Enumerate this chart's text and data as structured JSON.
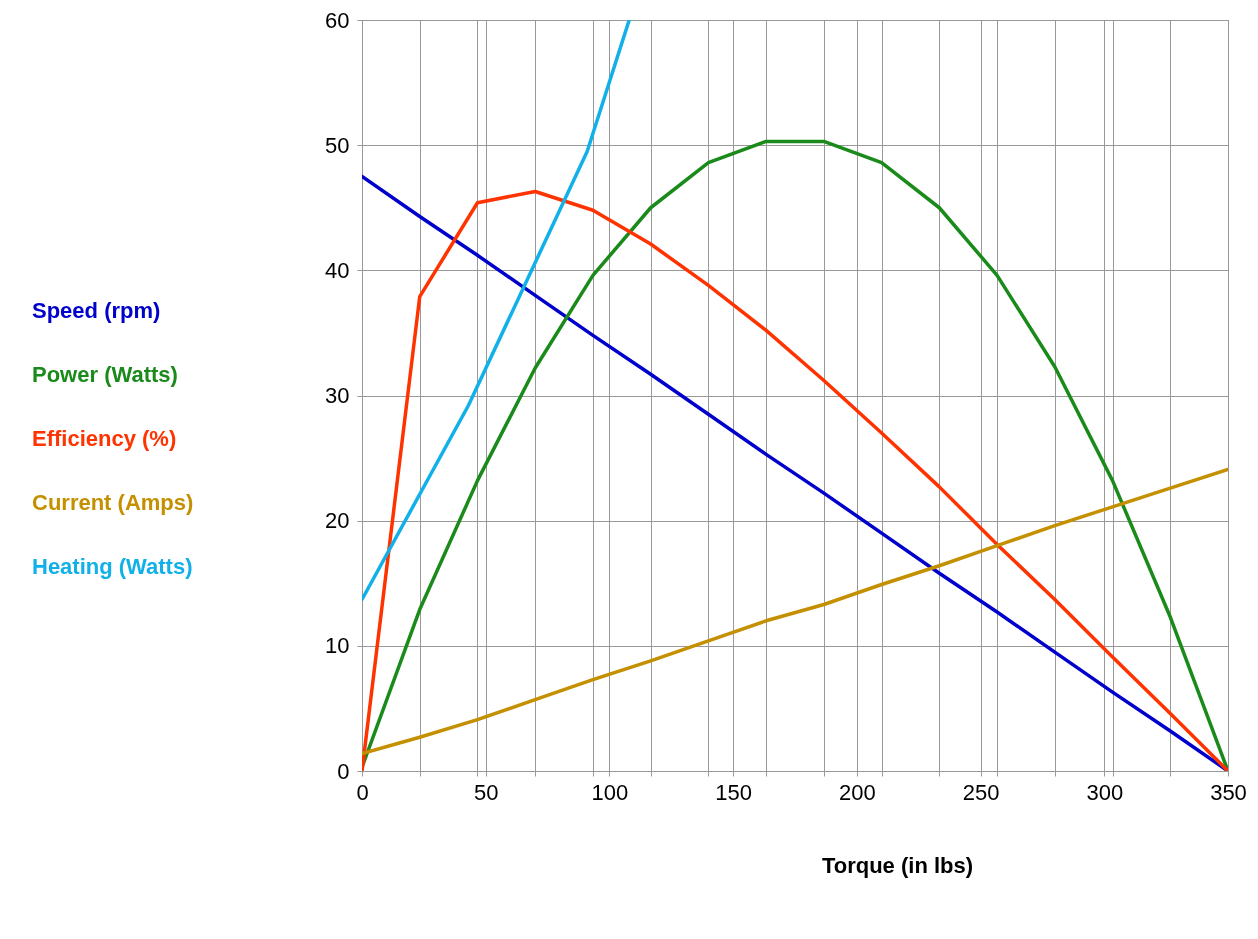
{
  "chart_data": {
    "type": "line",
    "xlabel": "Torque (in lbs)",
    "x": [
      0,
      23.33,
      46.67,
      70,
      93.33,
      116.67,
      140,
      163.33,
      186.67,
      210,
      233.33,
      256.67,
      280,
      303.33,
      326.67,
      350
    ],
    "series": [
      {
        "name": "Speed (rpm)",
        "color": "#0000cc",
        "values": [
          47.5,
          44.3,
          41.2,
          38.0,
          34.8,
          31.7,
          28.5,
          25.3,
          22.2,
          19.0,
          15.8,
          12.7,
          9.5,
          6.3,
          3.2,
          0
        ]
      },
      {
        "name": "Power (Watts)",
        "color": "#1a8a1a",
        "values": [
          0.3,
          12.9,
          23.2,
          32.2,
          39.6,
          45.0,
          48.6,
          50.3,
          50.3,
          48.6,
          45.0,
          39.6,
          32.3,
          23.2,
          12.3,
          0
        ]
      },
      {
        "name": "Efficiency (%)",
        "color": "#ff3300",
        "values": [
          0,
          37.9,
          45.4,
          46.3,
          44.8,
          42.1,
          38.8,
          35.2,
          31.2,
          27.0,
          22.7,
          18.1,
          13.7,
          9.1,
          4.6,
          0
        ]
      },
      {
        "name": "Current (Amps)",
        "color": "#c49000",
        "values": [
          1.4,
          2.7,
          4.1,
          5.7,
          7.3,
          8.8,
          10.4,
          12.0,
          13.3,
          14.9,
          16.4,
          18.0,
          19.6,
          21.1,
          22.6,
          24.1
        ]
      },
      {
        "name": "Heating (Watts)",
        "color": "#11b0e8",
        "x": [
          0,
          43,
          91,
          108
        ],
        "values": [
          13.7,
          29.2,
          49.5,
          60
        ]
      }
    ],
    "xlim": [
      0,
      350
    ],
    "xticks": [
      0,
      {
        "value": 23.33,
        "label": null
      },
      {
        "value": 46.67,
        "label": null
      },
      50,
      {
        "value": 70,
        "label": null
      },
      {
        "value": 93.33,
        "label": null
      },
      100,
      {
        "value": 116.67,
        "label": null
      },
      {
        "value": 140,
        "label": null
      },
      150,
      {
        "value": 163.33,
        "label": null
      },
      {
        "value": 186.67,
        "label": null
      },
      200,
      {
        "value": 210,
        "label": null
      },
      {
        "value": 233.33,
        "label": null
      },
      250,
      {
        "value": 256.67,
        "label": null
      },
      {
        "value": 280,
        "label": null
      },
      300,
      {
        "value": 303.33,
        "label": null
      },
      {
        "value": 326.67,
        "label": null
      },
      350
    ],
    "ylim": [
      0,
      60
    ],
    "yticks": [
      0,
      10,
      20,
      30,
      40,
      50,
      60
    ],
    "grid": true,
    "legend": "left",
    "marker": "none",
    "line_style": "solid"
  }
}
